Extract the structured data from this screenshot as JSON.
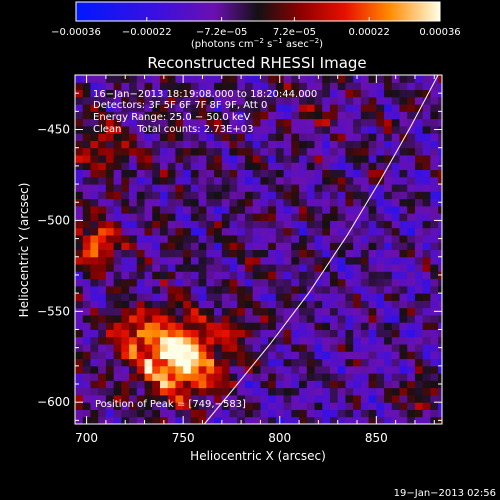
{
  "chart_data": {
    "type": "heatmap",
    "title": "Reconstructed RHESSI Image",
    "xlabel": "Heliocentric X (arcsec)",
    "ylabel": "Heliocentric Y (arcsec)",
    "xlim": [
      694,
      884
    ],
    "ylim": [
      -612,
      -420
    ],
    "x_ticks": [
      700,
      750,
      800,
      850
    ],
    "x_tick_labels": [
      "700",
      "750",
      "800",
      "850"
    ],
    "y_ticks": [
      -600,
      -550,
      -500,
      -450
    ],
    "y_tick_labels": [
      "−600",
      "−550",
      "−500",
      "−450"
    ],
    "colorbar": {
      "range": [
        -0.00036,
        0.00036
      ],
      "tick_values": [
        -0.00036,
        -0.00022,
        -7.2e-05,
        7.2e-05,
        0.00022,
        0.00036
      ],
      "tick_labels": [
        "−0.00036",
        "−0.00022",
        "−7.2e−05",
        "7.2e−05",
        "0.00022",
        "0.00036"
      ],
      "units_text": "(photons cm",
      "units_sup1": "−2",
      "units_mid": " s",
      "units_sup2": "−1",
      "units_mid2": " asec",
      "units_sup3": "−2",
      "units_end": ")"
    },
    "annotations": [
      "16−Jan−2013 18:19:08.000 to 18:20:44.000",
      "Detectors: 3F 5F 6F 7F 8F 9F, Att 0",
      "Energy Range: 25.0 − 50.0 keV",
      "Clean     Total counts: 2.73E+03"
    ],
    "peak_label": "Position of Peak = [749,−583]",
    "peak": [
      749,
      -583
    ],
    "limb_points": [
      [
        761,
        -612
      ],
      [
        775,
        -594
      ],
      [
        795,
        -568
      ],
      [
        815,
        -540
      ],
      [
        835,
        -508
      ],
      [
        852,
        -478
      ],
      [
        868,
        -448
      ],
      [
        882,
        -420
      ]
    ],
    "sources": [
      {
        "x": 748,
        "y": -575,
        "sx": 15,
        "sy": 14,
        "amp": 1.0
      },
      {
        "x": 706,
        "y": -512,
        "sx": 8,
        "sy": 9,
        "amp": 0.6
      },
      {
        "x": 725,
        "y": -560,
        "sx": 10,
        "sy": 8,
        "amp": 0.4
      },
      {
        "x": 778,
        "y": -560,
        "sx": 6,
        "sy": 6,
        "amp": 0.35
      },
      {
        "x": 708,
        "y": -458,
        "sx": 10,
        "sy": 9,
        "amp": 0.35
      },
      {
        "x": 872,
        "y": -596,
        "sx": 8,
        "sy": 8,
        "amp": 0.32
      },
      {
        "x": 744,
        "y": -435,
        "sx": 6,
        "sy": 6,
        "amp": 0.22
      },
      {
        "x": 820,
        "y": -440,
        "sx": 6,
        "sy": 6,
        "amp": 0.18
      }
    ],
    "footer_timestamp": "19−Jan−2013 02:56"
  }
}
